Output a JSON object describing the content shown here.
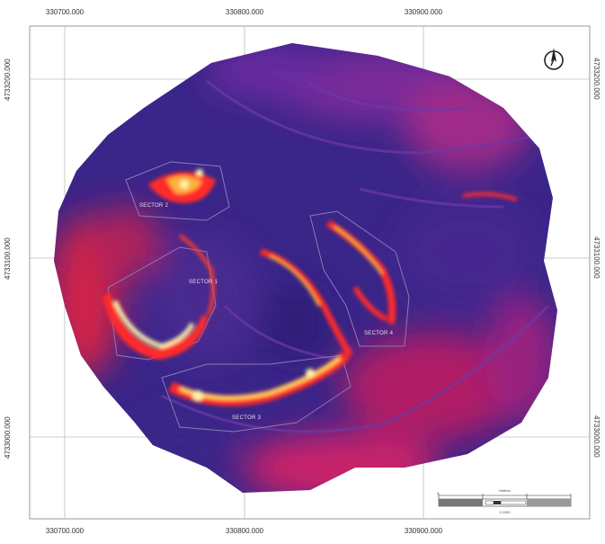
{
  "map": {
    "coords_x": [
      "330700.000",
      "330800.000",
      "330900.000"
    ],
    "coords_y": [
      "4733200.000",
      "4733100.000",
      "4733000.000"
    ],
    "sectors": [
      "SECTOR 2",
      "SECTOR 1",
      "SECTOR 4",
      "SECTOR 3"
    ],
    "colors": {
      "background": "#3a2588",
      "low": "#2b1f7a",
      "mid": "#c01a6e",
      "high": "#ff2a2a",
      "peak": "#fff3a8"
    }
  },
  "north_arrow": {
    "icon": "north-arrow-icon"
  },
  "scale_bar": {
    "title": "Metros",
    "unit": "1:1000",
    "ticks": [
      "0",
      "",
      "",
      "",
      "",
      "",
      ""
    ]
  }
}
